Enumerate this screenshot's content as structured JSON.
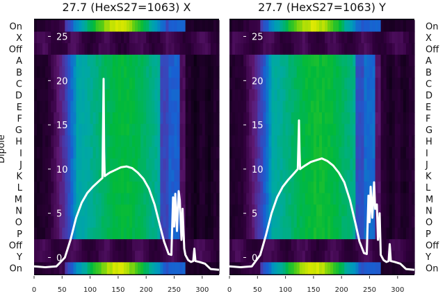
{
  "chart_data": [
    {
      "type": "heatmap",
      "title": "27.7 (HexS27=1063) X",
      "ylabel": "Dipole",
      "row_labels": [
        "On",
        "X",
        "Off",
        "A",
        "B",
        "C",
        "D",
        "E",
        "F",
        "G",
        "H",
        "I",
        "J",
        "K",
        "L",
        "M",
        "N",
        "O",
        "P",
        "Off",
        "Y",
        "On"
      ],
      "x_ticks": [
        0,
        50,
        100,
        150,
        200,
        250,
        300
      ],
      "xlim": [
        0,
        330
      ],
      "overlay_y_ticks": [
        0,
        5,
        10,
        15,
        20,
        25
      ],
      "overlay_ylim": [
        -2,
        27
      ],
      "colormap": "black-purple-blue-green-yellow",
      "series": [
        {
          "x": [
            0,
            20,
            40,
            55,
            65,
            75,
            85,
            95,
            105,
            115,
            122,
            124,
            125,
            126,
            128,
            135,
            145,
            155,
            165,
            175,
            185,
            195,
            205,
            215,
            225,
            232,
            240,
            245,
            248,
            250,
            252,
            255,
            258,
            260,
            263,
            265,
            268,
            270,
            275,
            280,
            284,
            286,
            288,
            295,
            305,
            315,
            330
          ],
          "y": [
            -1.0,
            -1.1,
            -1.0,
            0.0,
            2.0,
            4.5,
            6.2,
            7.3,
            8.0,
            8.6,
            9.0,
            20.2,
            12.0,
            9.2,
            9.3,
            9.6,
            9.9,
            10.2,
            10.3,
            10.1,
            9.6,
            8.9,
            7.8,
            6.0,
            3.5,
            1.8,
            0.4,
            0.3,
            6.8,
            3.5,
            7.2,
            3.0,
            7.5,
            6.5,
            2.0,
            5.5,
            1.0,
            0.3,
            -0.3,
            -0.5,
            -0.4,
            1.0,
            -0.4,
            -0.5,
            -0.7,
            -1.3,
            -1.4
          ]
        }
      ]
    },
    {
      "type": "heatmap",
      "title": "27.7 (HexS27=1063) Y",
      "row_labels": [
        "On",
        "X",
        "Off",
        "A",
        "B",
        "C",
        "D",
        "E",
        "F",
        "G",
        "H",
        "I",
        "J",
        "K",
        "L",
        "M",
        "N",
        "O",
        "P",
        "Off",
        "Y",
        "On"
      ],
      "x_ticks": [
        0,
        50,
        100,
        150,
        200,
        250,
        300
      ],
      "xlim": [
        0,
        330
      ],
      "overlay_y_ticks": [
        0,
        5,
        10,
        15,
        20,
        25
      ],
      "overlay_ylim": [
        -2,
        27
      ],
      "colormap": "black-purple-blue-green-yellow",
      "series": [
        {
          "x": [
            0,
            20,
            40,
            55,
            65,
            75,
            85,
            95,
            105,
            115,
            122,
            124,
            125,
            126,
            128,
            135,
            145,
            155,
            165,
            175,
            185,
            195,
            205,
            215,
            225,
            232,
            240,
            245,
            248,
            250,
            252,
            255,
            258,
            260,
            263,
            265,
            268,
            270,
            275,
            280,
            284,
            286,
            288,
            295,
            305,
            315,
            330
          ],
          "y": [
            -1.0,
            -1.1,
            -1.0,
            0.3,
            2.5,
            5.0,
            6.8,
            8.0,
            8.8,
            9.5,
            10.0,
            15.5,
            12.0,
            10.0,
            10.1,
            10.4,
            10.8,
            11.0,
            11.2,
            10.9,
            10.4,
            9.6,
            8.5,
            6.5,
            3.8,
            1.8,
            0.5,
            0.4,
            7.0,
            4.0,
            8.0,
            4.5,
            8.5,
            5.5,
            6.0,
            2.0,
            5.0,
            0.3,
            -0.3,
            -0.5,
            -0.4,
            1.5,
            -0.4,
            -0.5,
            -0.7,
            -1.3,
            -1.4
          ]
        }
      ]
    }
  ]
}
